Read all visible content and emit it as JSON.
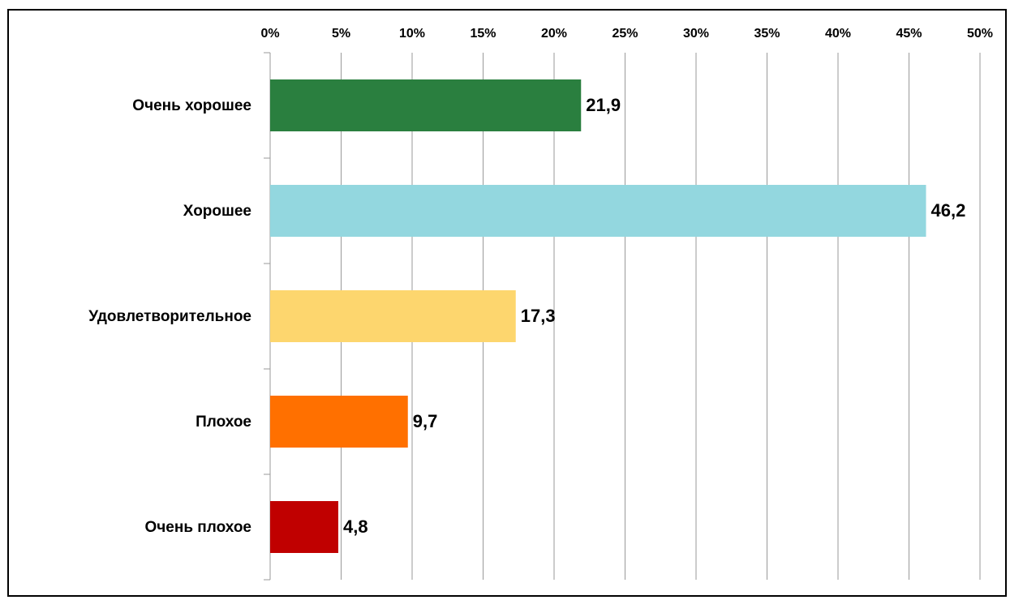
{
  "chart_data": {
    "type": "bar",
    "orientation": "horizontal",
    "categories": [
      "Очень хорошее",
      "Хорошее",
      "Удовлетворительное",
      "Плохое",
      "Очень плохое"
    ],
    "values": [
      21.9,
      46.2,
      17.3,
      9.7,
      4.8
    ],
    "value_labels": [
      "21,9",
      "46,2",
      "17,3",
      "9,7",
      "4,8"
    ],
    "colors": [
      "#2a7f3f",
      "#93d7df",
      "#fdd66e",
      "#ff7000",
      "#c00000"
    ],
    "xlim": [
      0,
      50
    ],
    "xticks": [
      {
        "value": 0,
        "label": "0%"
      },
      {
        "value": 5,
        "label": "5%"
      },
      {
        "value": 10,
        "label": "10%"
      },
      {
        "value": 15,
        "label": "15%"
      },
      {
        "value": 20,
        "label": "20%"
      },
      {
        "value": 25,
        "label": "25%"
      },
      {
        "value": 30,
        "label": "30%"
      },
      {
        "value": 35,
        "label": "35%"
      },
      {
        "value": 40,
        "label": "40%"
      },
      {
        "value": 45,
        "label": "45%"
      },
      {
        "value": 50,
        "label": "50%"
      }
    ],
    "grid": true,
    "xaxis_position": "top"
  }
}
